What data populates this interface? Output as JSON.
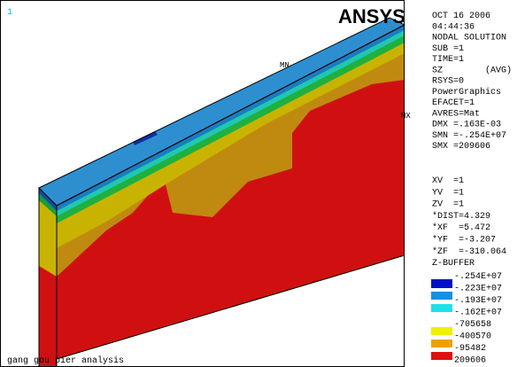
{
  "viewport": {
    "window_number": "1",
    "logo": "ANSYS",
    "min_label": "MN",
    "max_label": "MX",
    "caption": "gang gou pier analysis"
  },
  "info": {
    "lines": [
      "OCT 16 2006",
      "04:44:36",
      "NODAL SOLUTION",
      "SUB =1",
      "TIME=1",
      "SZ        (AVG)",
      "RSYS=0",
      "PowerGraphics",
      "EFACET=1",
      "AVRES=Mat",
      "DMX =.163E-03",
      "SMN =-.254E+07",
      "SMX =209606"
    ]
  },
  "view": {
    "lines": [
      "XV  =1",
      "YV  =1",
      "ZV  =1",
      "*DIST=4.329",
      "*XF  =5.472",
      "*YF  =-3.207",
      "*ZF  =-310.064",
      "Z-BUFFER"
    ]
  },
  "legend": {
    "labels": [
      "-.254E+07",
      "-.223E+07",
      "-.193E+07",
      "-.162E+07",
      "-705658",
      "-400570",
      "-95482",
      "209606"
    ]
  }
}
